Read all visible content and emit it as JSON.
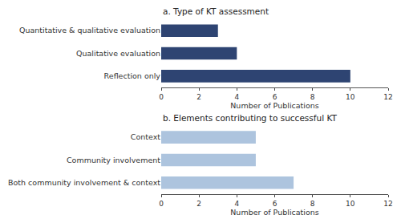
{
  "chart_data": [
    {
      "type": "bar",
      "orientation": "horizontal",
      "title": "a. Type of KT assessment",
      "categories": [
        "Quantitative & qualitative evaluation",
        "Qualitative evaluation",
        "Reflection only"
      ],
      "values": [
        3,
        4,
        10
      ],
      "color": "#2E4472",
      "xlabel": "Number of Publications",
      "xlim": [
        0,
        12
      ],
      "xticks": [
        0,
        2,
        4,
        6,
        8,
        10,
        12
      ],
      "grid": false
    },
    {
      "type": "bar",
      "orientation": "horizontal",
      "title": "b. Elements contributing to successful KT",
      "categories": [
        "Context",
        "Community involvement",
        "Both community involvement & context"
      ],
      "values": [
        5,
        5,
        7
      ],
      "color": "#ADC4DE",
      "xlabel": "Number of Publications",
      "xlim": [
        0,
        12
      ],
      "xticks": [
        0,
        2,
        4,
        6,
        8,
        10,
        12
      ],
      "grid": false
    }
  ]
}
